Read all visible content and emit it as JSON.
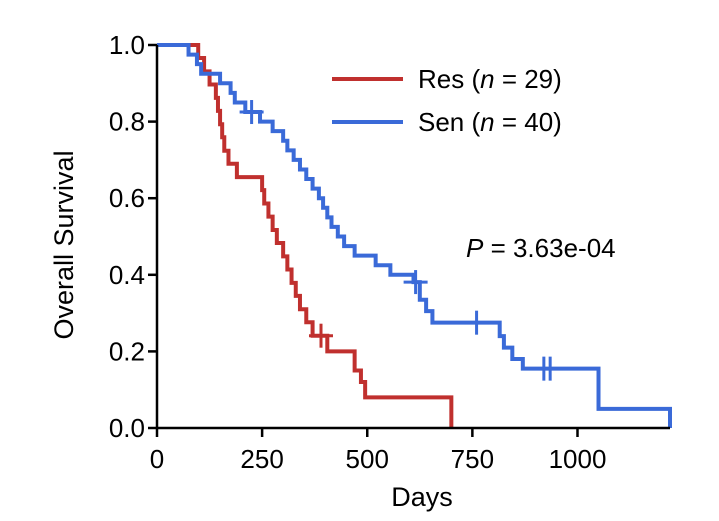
{
  "chart_data": {
    "type": "line",
    "subtype": "kaplan-meier",
    "xlabel": "Days",
    "ylabel": "Overall Survival",
    "xlim": [
      0,
      1220
    ],
    "ylim": [
      0,
      1.0
    ],
    "xticks": [
      0,
      250,
      500,
      750,
      1000
    ],
    "yticks": [
      0.0,
      0.2,
      0.4,
      0.6,
      0.8,
      1.0
    ],
    "xtick_labels": [
      "0",
      "250",
      "500",
      "750",
      "1000"
    ],
    "ytick_labels": [
      "0.0",
      "0.2",
      "0.4",
      "0.6",
      "0.8",
      "1.0"
    ],
    "grid": false,
    "legend_position": "top-right",
    "annotation": {
      "prefix": "P",
      "text": " = 3.63e-04"
    },
    "series": [
      {
        "name": "Res",
        "legend": {
          "name": "Res (",
          "n_symbol": "n",
          "rest": " = 29)"
        },
        "color": "#c0302e",
        "steps": [
          [
            0,
            1.0
          ],
          [
            98,
            0.966
          ],
          [
            112,
            0.931
          ],
          [
            125,
            0.897
          ],
          [
            140,
            0.862
          ],
          [
            145,
            0.828
          ],
          [
            150,
            0.793
          ],
          [
            155,
            0.759
          ],
          [
            160,
            0.724
          ],
          [
            170,
            0.69
          ],
          [
            190,
            0.655
          ],
          [
            250,
            0.621
          ],
          [
            255,
            0.586
          ],
          [
            265,
            0.552
          ],
          [
            275,
            0.517
          ],
          [
            285,
            0.483
          ],
          [
            300,
            0.448
          ],
          [
            310,
            0.414
          ],
          [
            320,
            0.379
          ],
          [
            330,
            0.345
          ],
          [
            340,
            0.31
          ],
          [
            355,
            0.276
          ],
          [
            370,
            0.241
          ],
          [
            405,
            0.2
          ],
          [
            470,
            0.15
          ],
          [
            485,
            0.12
          ],
          [
            495,
            0.08
          ],
          [
            700,
            0.0
          ]
        ],
        "censored": [
          [
            390,
            0.241
          ]
        ]
      },
      {
        "name": "Sen",
        "legend": {
          "name": "Sen (",
          "n_symbol": "n",
          "rest": " = 40)"
        },
        "color": "#3a6ad8",
        "steps": [
          [
            0,
            1.0
          ],
          [
            75,
            0.975
          ],
          [
            95,
            0.95
          ],
          [
            105,
            0.925
          ],
          [
            150,
            0.9
          ],
          [
            175,
            0.875
          ],
          [
            185,
            0.85
          ],
          [
            210,
            0.825
          ],
          [
            245,
            0.8
          ],
          [
            275,
            0.775
          ],
          [
            300,
            0.75
          ],
          [
            310,
            0.725
          ],
          [
            325,
            0.7
          ],
          [
            340,
            0.675
          ],
          [
            355,
            0.65
          ],
          [
            370,
            0.625
          ],
          [
            385,
            0.6
          ],
          [
            395,
            0.575
          ],
          [
            405,
            0.55
          ],
          [
            415,
            0.525
          ],
          [
            430,
            0.5
          ],
          [
            445,
            0.475
          ],
          [
            470,
            0.45
          ],
          [
            520,
            0.425
          ],
          [
            555,
            0.4
          ],
          [
            610,
            0.381
          ],
          [
            625,
            0.335
          ],
          [
            640,
            0.305
          ],
          [
            655,
            0.275
          ],
          [
            815,
            0.24
          ],
          [
            825,
            0.21
          ],
          [
            845,
            0.18
          ],
          [
            870,
            0.155
          ],
          [
            1050,
            0.05
          ]
        ],
        "end_x": 1220,
        "censored": [
          [
            225,
            0.825
          ],
          [
            615,
            0.381
          ],
          [
            760,
            0.275
          ],
          [
            920,
            0.155
          ],
          [
            935,
            0.155
          ]
        ]
      }
    ]
  }
}
